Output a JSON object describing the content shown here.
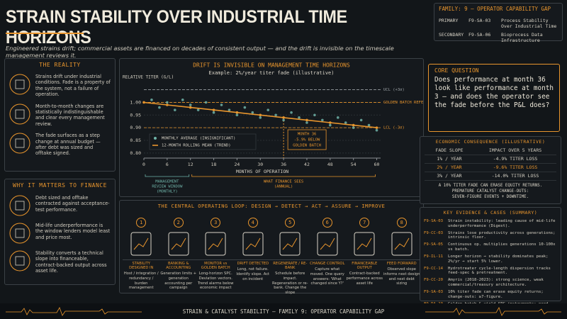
{
  "header": {
    "title": "STRAIN STABILITY OVER INDUSTRIAL TIME HORIZONS",
    "subtitle": "Engineered strains drift; commercial assets are financed on decades of consistent output — and the drift is invisible on the timescale management reviews it."
  },
  "family_box": {
    "title": "FAMILY: 9 — OPERATOR CAPABILITY GAP",
    "rows": [
      [
        "PRIMARY",
        "F9-SA-03",
        "Process Stability Over Industrial Time"
      ],
      [
        "SECONDARY",
        "F9-SA-06",
        "Bioprocess Data Infrastructure"
      ]
    ]
  },
  "reality": {
    "title": "THE REALITY",
    "items": [
      "Strains drift under industrial conditions. Fade is a property of the system, not a failure of operation.",
      "Month-to-month changes are statistically indistinguishable and clear every management review.",
      "The fade surfaces as a step change at annual budget — after debt was sized and offtake signed."
    ]
  },
  "finance": {
    "title": "WHY IT MATTERS TO FINANCE",
    "items": [
      "Debt sized and offtake contracted against acceptance-test performance.",
      "Mid-life underperformance is the window lenders model least and price most.",
      "Stability converts a technical slope into financeable, contract-backed output across asset life."
    ]
  },
  "chart_data": {
    "type": "line",
    "title": "DRIFT IS INVISIBLE ON MANAGEMENT TIME HORIZONS",
    "subtitle": "Example: 2%/year titer fade (illustrative)",
    "y_label": "RELATIVE TITER (G/L)",
    "x_label": "MONTHS OF OPERATION",
    "xlim": [
      0,
      61
    ],
    "ylim": [
      0.78,
      1.06
    ],
    "xticks": [
      0,
      6,
      12,
      18,
      24,
      30,
      36,
      42,
      48,
      54,
      60
    ],
    "yticks": [
      {
        "value": 0.8,
        "label": "0.80"
      },
      0.85,
      {
        "value": 0.9,
        "label": "0.90"
      },
      0.95,
      {
        "value": 1,
        "label": "1.00"
      }
    ],
    "reference_lines": [
      {
        "label": "UCL (+3σ)",
        "value": 1.05,
        "color": "#9aa0a4"
      },
      {
        "label": "GOLDEN BATCH REFERENCE",
        "value": 1.0,
        "color": "#e8952d"
      },
      {
        "label": "LCL (-3σ)",
        "value": 0.9,
        "color": "#e8952d"
      }
    ],
    "series": [
      {
        "name": "MONTHLY AVERAGE (INSIGNIFICANT)",
        "type": "scatter",
        "color": "#6fb3a8",
        "x": [
          2,
          4,
          6,
          8,
          10,
          12,
          14,
          16,
          18,
          20,
          22,
          24,
          26,
          28,
          30,
          32,
          34,
          36,
          38,
          40,
          42,
          44,
          46,
          48,
          50,
          52,
          54,
          56,
          58,
          60
        ],
        "values": [
          1.01,
          0.98,
          1.0,
          0.97,
          1.01,
          0.99,
          0.97,
          1.0,
          0.96,
          0.99,
          0.97,
          0.95,
          0.98,
          0.96,
          0.94,
          0.97,
          0.95,
          0.93,
          0.96,
          0.94,
          0.92,
          0.95,
          0.93,
          0.91,
          0.94,
          0.92,
          0.9,
          0.93,
          0.91,
          0.89
        ]
      },
      {
        "name": "12-MONTH ROLLING MEAN (TREND)",
        "type": "line",
        "color": "#e8952d",
        "x": [
          0,
          6,
          12,
          18,
          24,
          30,
          36,
          42,
          48,
          54,
          60
        ],
        "values": [
          1.0,
          0.99,
          0.98,
          0.97,
          0.96,
          0.95,
          0.94,
          0.93,
          0.92,
          0.91,
          0.9
        ]
      }
    ],
    "annotation": {
      "lines": [
        "MONTH 36",
        "-5.9% BELOW",
        "GOLDEN BATCH"
      ],
      "x": 36,
      "y": 0.94
    },
    "windows": [
      {
        "lines": [
          "MANAGEMENT",
          "REVIEW WINDOW",
          "(MONTHLY)"
        ],
        "x": [
          0,
          12
        ],
        "color": "#6fb3a8"
      },
      {
        "lines": [
          "WHAT FINANCE SEES",
          "(ANNUAL)"
        ],
        "x": [
          12,
          60
        ],
        "color": "#e8952d"
      }
    ],
    "grid": true
  },
  "loop": {
    "title": "THE CENTRAL OPERATING LOOP: DESIGN → DETECT → ACT → ASSURE → IMPROVE",
    "steps": [
      {
        "number": "1",
        "title": "STABILITY DESIGNED IN",
        "text": "Host / integration / redundancy / burden management"
      },
      {
        "number": "2",
        "title": "BANKING & ACCOUNTING",
        "text": "Generation limits + generation accounting per campaign"
      },
      {
        "number": "3",
        "title": "MONITOR vs GOLDEN BATCH",
        "text": "Long-horizon SPC. Deviation vectors. Trend alarms below economic impact"
      },
      {
        "number": "4",
        "title": "DRIFT DETECTED",
        "text": "Long, not failure. Identify slope. Act on incident"
      },
      {
        "number": "5",
        "title": "REGENERATE / RE-BANK",
        "text": "Schedule before impact. Regeneration or re-bank. Change the slope"
      },
      {
        "number": "6",
        "title": "CHANGE CONTROL",
        "text": "Capture what moved. One query answers: 'What changed since Y?'"
      },
      {
        "number": "7",
        "title": "FINANCEABLE OUTPUT",
        "text": "Contract-backed performance across asset life"
      },
      {
        "number": "8",
        "title": "FEED FORWARD",
        "text": "Observed slope informs next design and next debt sizing"
      }
    ]
  },
  "core_question": {
    "title": "CORE QUESTION",
    "text": "Does performance at month 36 look like performance at month 3 — and does the operator see the fade before the P&L does?"
  },
  "economics": {
    "title": "ECONOMIC CONSEQUENCE (ILLUSTRATIVE)",
    "headers": [
      "FADE SLOPE",
      "IMPACT OVER 5 YEARS"
    ],
    "rows": [
      [
        "1% / YEAR",
        "-4.9% TITER LOSS"
      ],
      [
        "2% / YEAR",
        "-9.6% TITER LOSS"
      ],
      [
        "3% / YEAR",
        "-14.0% TITER LOSS"
      ]
    ],
    "notes": [
      "A 10% TITER FADE CAN ERASE EQUITY RETURNS.",
      "PREMATURE CATALYST CHANGE-OUTS:",
      "SEVEN-FIGURE EVENTS + DOWNTIME."
    ]
  },
  "evidence": {
    "title": "KEY EVIDENCE & CASES (SUMMARY)",
    "rows": [
      [
        "F9-SA-03",
        "Strain instability: leading cause of mid-life underperformance (Digest)."
      ],
      [
        "F9-CC-03",
        "Strains lose productivity across generations; intrinsic floor."
      ],
      [
        "F9-SA-05",
        "Continuous op. multiplies generations 10-100x vs batch."
      ],
      [
        "F9-IL-11",
        "Longer horizon → stability dominates peak; 2%/yr → start 5% lower."
      ],
      [
        "F9-CC-14",
        "Hydrotreater cycle-length dispersion tracks feed-spec & pretreatment."
      ],
      [
        "F9-CC-20",
        "Amyris (2018-2023): strong science, weak commercial/treasury architecture."
      ],
      [
        "F9-SA-03",
        "10% titer fade can erase equity returns; change-outs: ≥7-figure."
      ],
      [
        "F9-DA-23",
        "Golden batch & yield-SPC instruments: need long-horizon SPC to see fade."
      ]
    ]
  },
  "footer": {
    "text": "STRAIN & CATALYST STABILITY — FAMILY 9: OPERATOR CAPABILITY GAP"
  }
}
